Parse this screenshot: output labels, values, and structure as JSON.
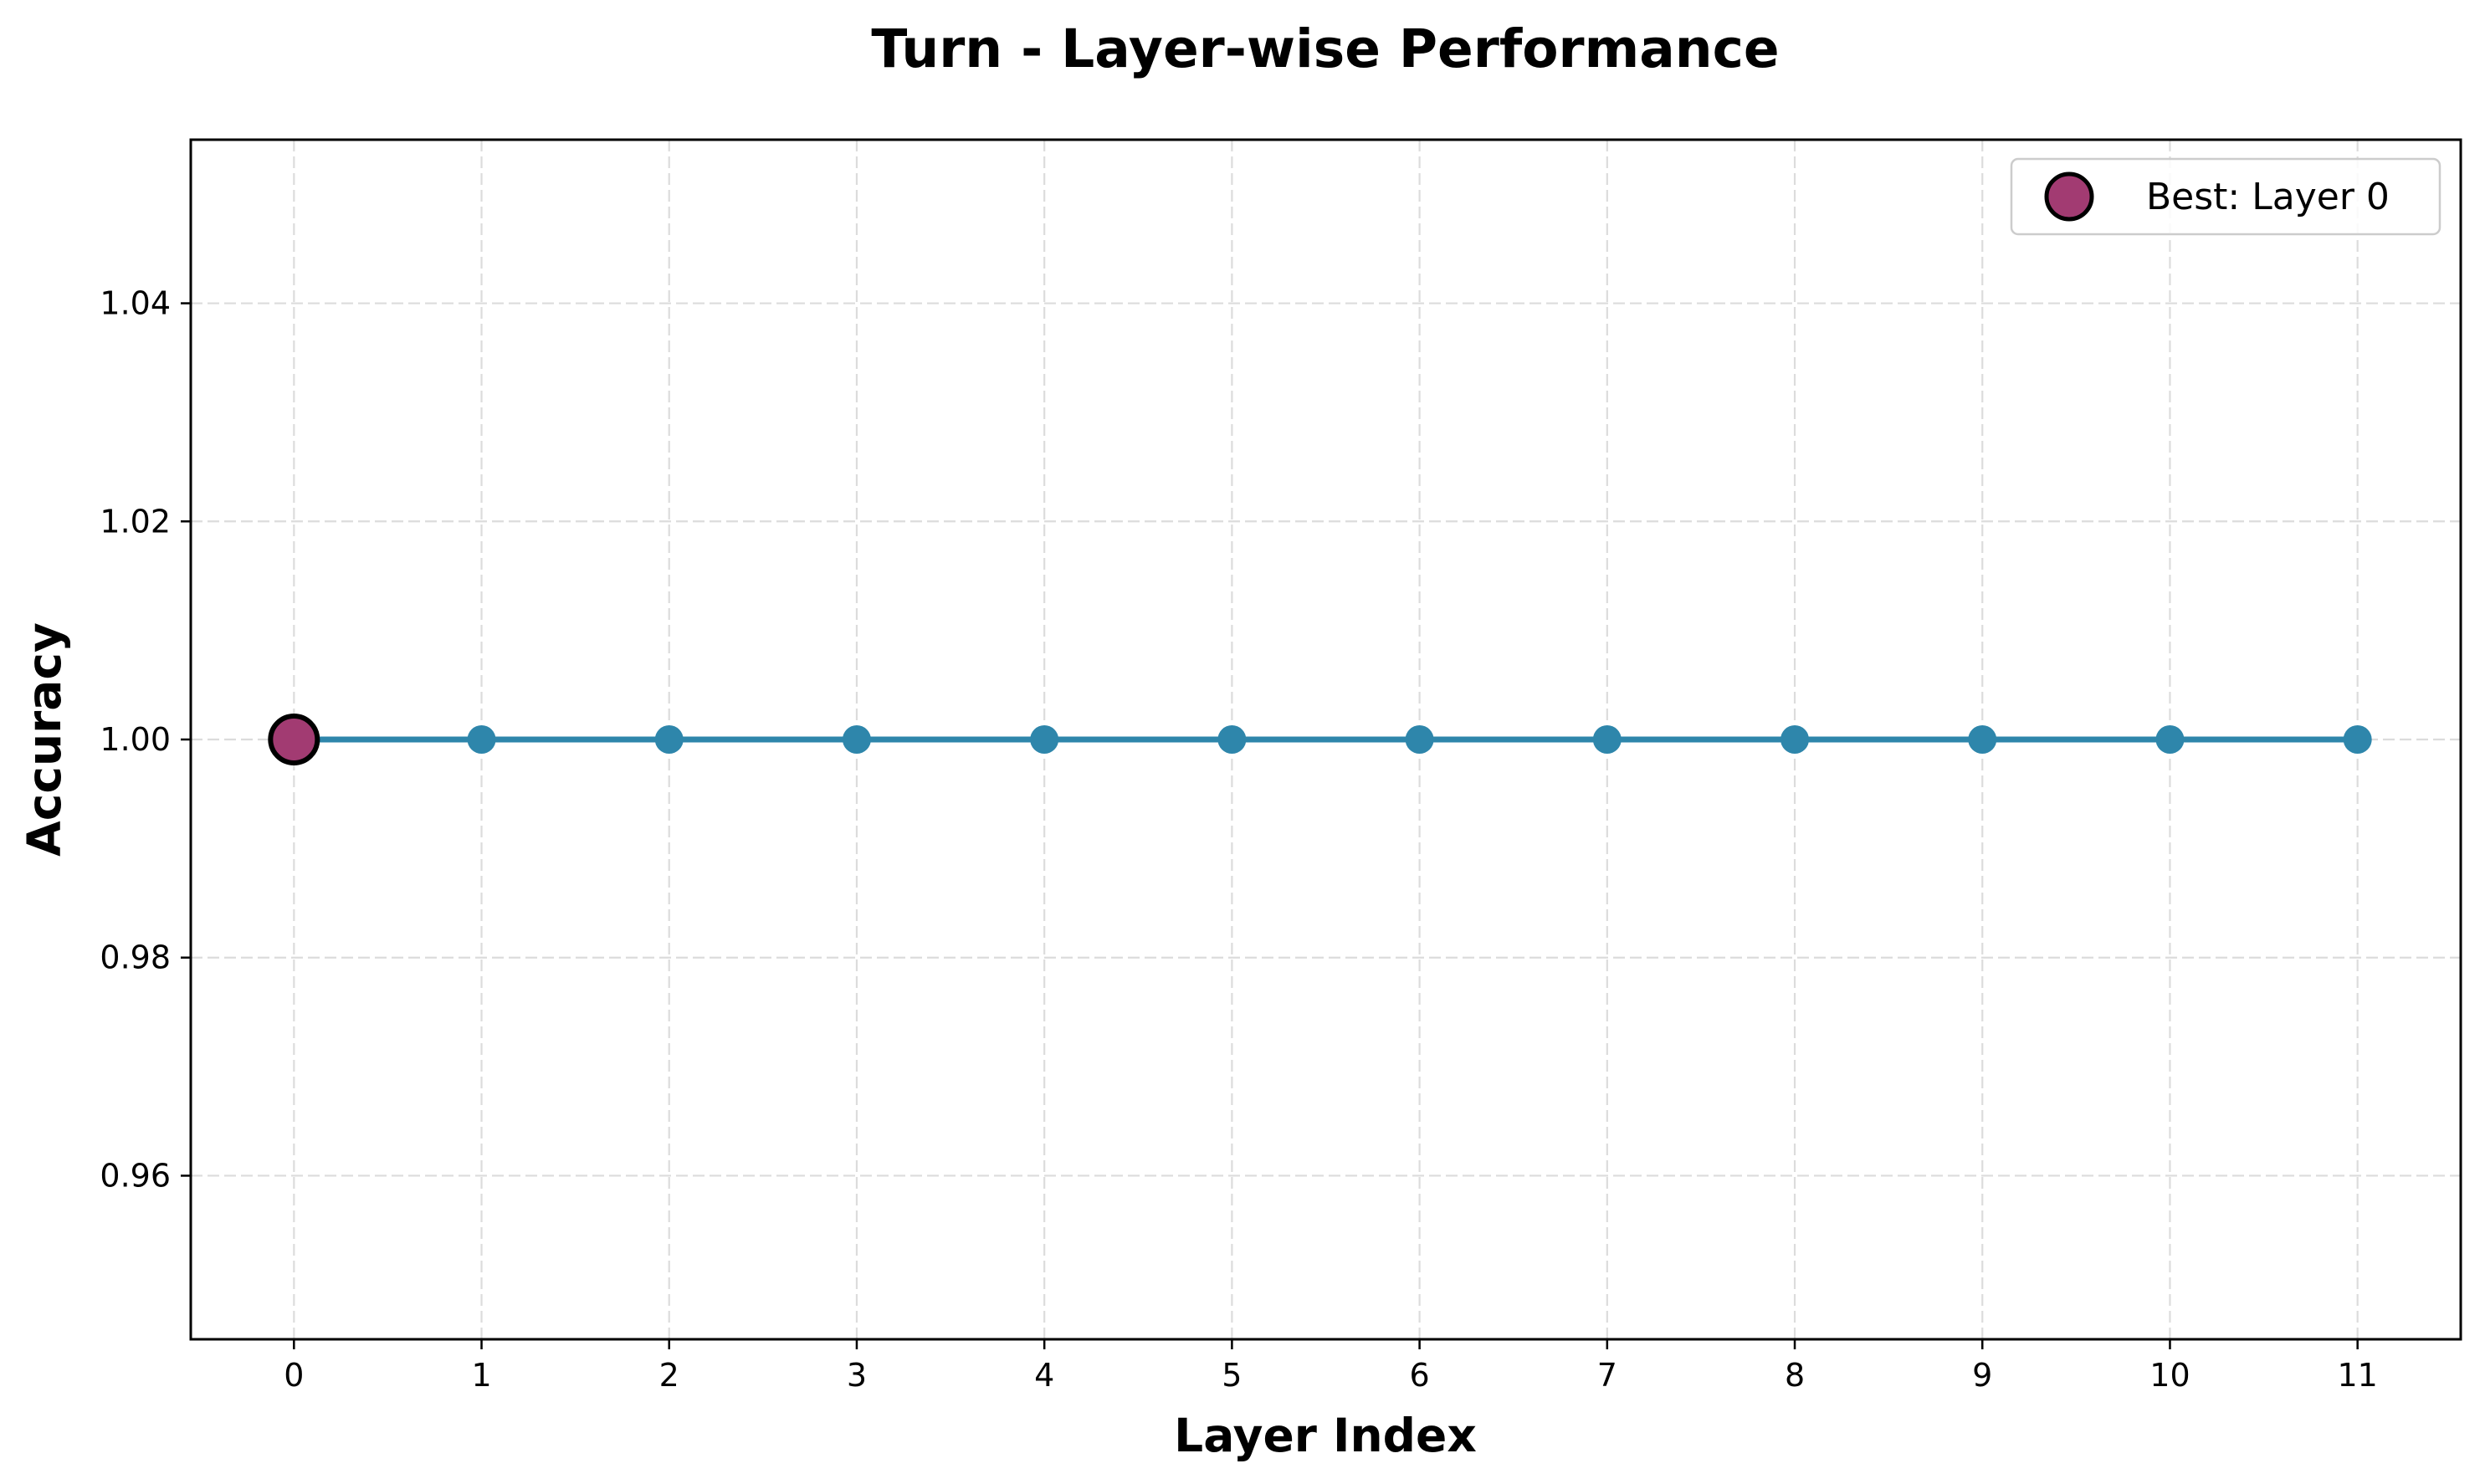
{
  "chart_data": {
    "type": "line",
    "title": "Turn - Layer-wise Performance",
    "xlabel": "Layer Index",
    "ylabel": "Accuracy",
    "x": [
      0,
      1,
      2,
      3,
      4,
      5,
      6,
      7,
      8,
      9,
      10,
      11
    ],
    "xlim": [
      -0.55,
      11.55
    ],
    "ylim": [
      0.945,
      1.055
    ],
    "yticks": [
      0.96,
      0.98,
      1.0,
      1.02,
      1.04
    ],
    "ytick_labels": [
      "0.96",
      "0.98",
      "1.00",
      "1.02",
      "1.04"
    ],
    "xtick_labels": [
      "0",
      "1",
      "2",
      "3",
      "4",
      "5",
      "6",
      "7",
      "8",
      "9",
      "10",
      "11"
    ],
    "grid": true,
    "series": [
      {
        "values": [
          1.0,
          1.0,
          1.0,
          1.0,
          1.0,
          1.0,
          1.0,
          1.0,
          1.0,
          1.0,
          1.0,
          1.0
        ],
        "color": "#2e86ab"
      }
    ],
    "best_point": {
      "x": 0,
      "y": 1.0,
      "color": "#a23b72"
    },
    "legend": {
      "position": "top-right",
      "entries": [
        "Best: Layer 0"
      ]
    }
  }
}
